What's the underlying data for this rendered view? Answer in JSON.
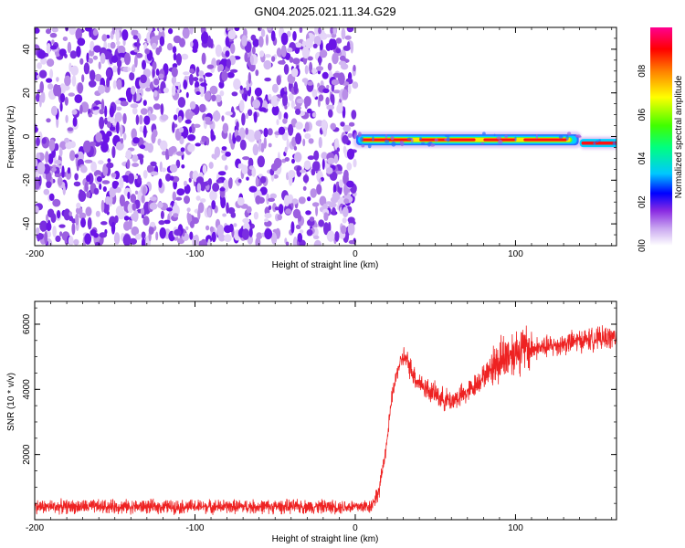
{
  "title": "GN04.2025.021.11.34.G29",
  "chart_data": [
    {
      "type": "heatmap",
      "xlabel": "Height of straight line (km)",
      "ylabel": "Frequency (Hz)",
      "xlim": [
        -200,
        163
      ],
      "ylim": [
        -50,
        50
      ],
      "xticks": [
        -200,
        -100,
        0,
        100
      ],
      "yticks": [
        -40,
        -20,
        0,
        20,
        40
      ],
      "colorbar": {
        "label": "Normalized spectral amplitude",
        "range": [
          0,
          1
        ],
        "ticks": [
          "0.0",
          "0.2",
          "0.4",
          "0.6",
          "0.8"
        ],
        "colors": [
          "#ffffff",
          "#c9a6f0",
          "#8a2be2",
          "#0000ff",
          "#00c8ff",
          "#00ff80",
          "#40ff00",
          "#ffff00",
          "#ff8000",
          "#ff0000",
          "#ff0090"
        ]
      },
      "regions": [
        {
          "x_range": [
            -200,
            0
          ],
          "description": "broadband noise",
          "amplitude_range": [
            0.0,
            0.2
          ]
        },
        {
          "x_range": [
            0,
            140
          ],
          "frequency": -1.5,
          "peak_amplitude": 0.95
        },
        {
          "x_range": [
            140,
            163
          ],
          "frequency": -3,
          "peak_amplitude": 0.95
        }
      ]
    },
    {
      "type": "line",
      "xlabel": "Height of straight line (km)",
      "ylabel": "SNR (10 * v/v)",
      "xlim": [
        -200,
        163
      ],
      "ylim": [
        0,
        6700
      ],
      "xticks": [
        -200,
        -100,
        0,
        100
      ],
      "yticks": [
        2000,
        4000,
        6000
      ],
      "color": "#ee2222",
      "profile": [
        [
          -200,
          400
        ],
        [
          0,
          400
        ],
        [
          10,
          420
        ],
        [
          15,
          900
        ],
        [
          20,
          2500
        ],
        [
          23,
          3800
        ],
        [
          27,
          4700
        ],
        [
          30,
          5000
        ],
        [
          33,
          4800
        ],
        [
          38,
          4300
        ],
        [
          45,
          4000
        ],
        [
          55,
          3700
        ],
        [
          60,
          3650
        ],
        [
          70,
          3900
        ],
        [
          80,
          4400
        ],
        [
          90,
          4900
        ],
        [
          100,
          5200
        ],
        [
          120,
          5300
        ],
        [
          140,
          5500
        ],
        [
          163,
          5600
        ]
      ]
    }
  ]
}
